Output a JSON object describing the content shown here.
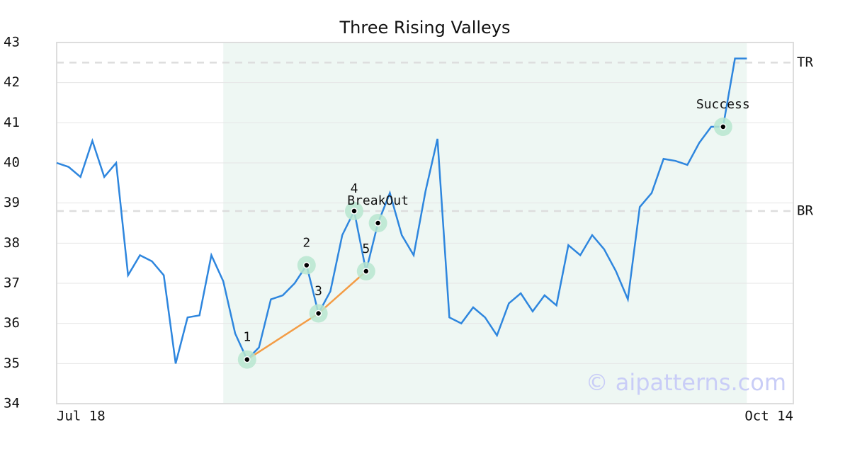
{
  "chart_data": {
    "type": "line",
    "title": "Three Rising Valleys",
    "categories": [
      "Jul 18",
      null,
      null,
      null,
      null,
      null,
      null,
      null,
      null,
      null,
      null,
      null,
      null,
      null,
      null,
      null,
      null,
      null,
      null,
      null,
      null,
      null,
      null,
      null,
      null,
      null,
      null,
      null,
      null,
      null,
      null,
      null,
      null,
      null,
      null,
      null,
      null,
      null,
      null,
      null,
      null,
      null,
      null,
      null,
      null,
      null,
      null,
      null,
      null,
      null,
      null,
      null,
      null,
      null,
      null,
      null,
      null,
      null,
      "Oct 14"
    ],
    "series": [
      {
        "color": "#2e86de",
        "values": [
          40.0,
          39.9,
          39.65,
          40.55,
          39.65,
          40.0,
          37.2,
          37.7,
          37.55,
          37.2,
          35.0,
          36.15,
          36.2,
          37.7,
          37.05,
          35.75,
          35.1,
          35.4,
          36.6,
          36.7,
          37.0,
          37.45,
          36.25,
          36.8,
          38.2,
          38.8,
          37.3,
          38.5,
          39.25,
          38.2,
          37.7,
          39.3,
          40.6,
          36.15,
          36.0,
          36.4,
          36.15,
          35.7,
          36.5,
          36.75,
          36.3,
          36.7,
          36.45,
          37.95,
          37.7,
          38.2,
          37.85,
          37.3,
          36.6,
          38.9,
          39.25,
          40.1,
          40.05,
          39.95,
          40.5,
          40.9,
          40.9,
          42.6,
          42.6
        ]
      }
    ],
    "ylim": [
      34,
      43
    ],
    "yticks": [
      34,
      35,
      36,
      37,
      38,
      39,
      40,
      41,
      42,
      43
    ],
    "grid": true,
    "shaded_range": [
      14,
      58
    ],
    "shade_color": "#eef7f3",
    "levels": [
      {
        "label": "TR",
        "value": 42.5
      },
      {
        "label": "BR",
        "value": 38.8
      }
    ],
    "annotations": [
      {
        "label": "1",
        "x": 16,
        "value": 35.1
      },
      {
        "label": "2",
        "x": 21,
        "value": 37.45
      },
      {
        "label": "3",
        "x": 22,
        "value": 36.25
      },
      {
        "label": "4",
        "x": 25,
        "value": 38.8
      },
      {
        "label": "5",
        "x": 26,
        "value": 37.3
      },
      {
        "label": "BreakOut",
        "x": 27,
        "value": 38.5
      },
      {
        "label": "Success",
        "x": 56,
        "value": 40.9
      }
    ],
    "trendline": {
      "color": "#f39c45",
      "x": [
        16,
        22,
        26
      ],
      "values": [
        35.1,
        36.25,
        37.3
      ]
    },
    "watermark": "© aipatterns.com"
  }
}
